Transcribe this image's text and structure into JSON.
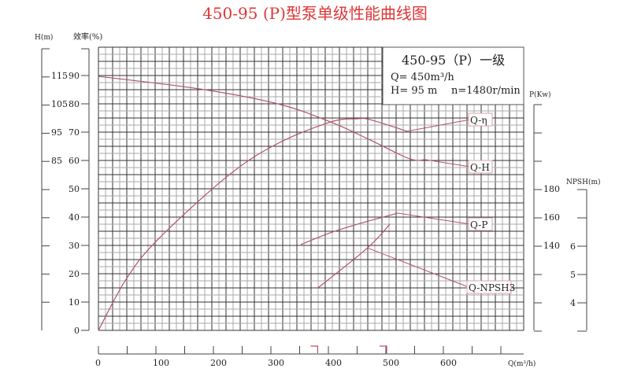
{
  "title": "450-95 (P)型泵单级性能曲线图",
  "colors": {
    "title": "#e03535",
    "curve": "#b0546a",
    "grid_dark": "#333333",
    "grid_light": "#aaaaaa",
    "marker": "#c05060"
  },
  "info_box": {
    "model": "450-95（P）一级",
    "flow": "Q= 450m³/h",
    "head": "H= 95 m",
    "speed": "n=1480r/min"
  },
  "chart_data": {
    "type": "line",
    "grid": true,
    "x_axis": {
      "label": "Q(m³/h)",
      "range": [
        0,
        740
      ],
      "ticks": [
        0,
        100,
        200,
        300,
        400,
        500,
        600
      ],
      "minor_step": 50
    },
    "y_axes": {
      "head": {
        "label": "H(m)",
        "range": [
          25,
          125
        ],
        "ticks": [
          85,
          95,
          105,
          115
        ],
        "position": "left-outer"
      },
      "efficiency": {
        "label": "效率(%)",
        "range": [
          0,
          100
        ],
        "ticks": [
          0,
          10,
          20,
          30,
          40,
          50,
          60,
          70,
          80,
          90
        ],
        "position": "left-inner"
      },
      "power": {
        "label": "P(Kw)",
        "range": [
          80,
          240
        ],
        "ticks": [
          140,
          160,
          180
        ],
        "position": "right-inner"
      },
      "npsh": {
        "label": "NPSH(m)",
        "range": [
          3,
          8
        ],
        "ticks": [
          4,
          5,
          6
        ],
        "position": "right-outer"
      }
    },
    "series": [
      {
        "name": "Q-H",
        "axis": "head",
        "x": [
          0,
          175,
          312,
          404,
          473,
          541,
          568
        ],
        "y": [
          114.7,
          110.3,
          105,
          98.6,
          92.2,
          85.6,
          85.3
        ]
      },
      {
        "name": "Q-η",
        "axis": "efficiency",
        "x": [
          0,
          48,
          103,
          226,
          312,
          404,
          449,
          473,
          537
        ],
        "y": [
          0,
          18,
          32,
          54.7,
          66,
          73.6,
          74.7,
          74.4,
          70.3
        ]
      },
      {
        "name": "Q-P",
        "axis": "power",
        "x": [
          352,
          404,
          459,
          521
        ],
        "y": [
          140.6,
          149,
          156,
          162.8
        ]
      },
      {
        "name": "Q-NPSH3",
        "axis": "npsh",
        "x": [
          382,
          468,
          507
        ],
        "y": [
          4.53,
          5.94,
          6.78
        ]
      }
    ],
    "operating_range_markers": [
      380,
      500
    ]
  }
}
